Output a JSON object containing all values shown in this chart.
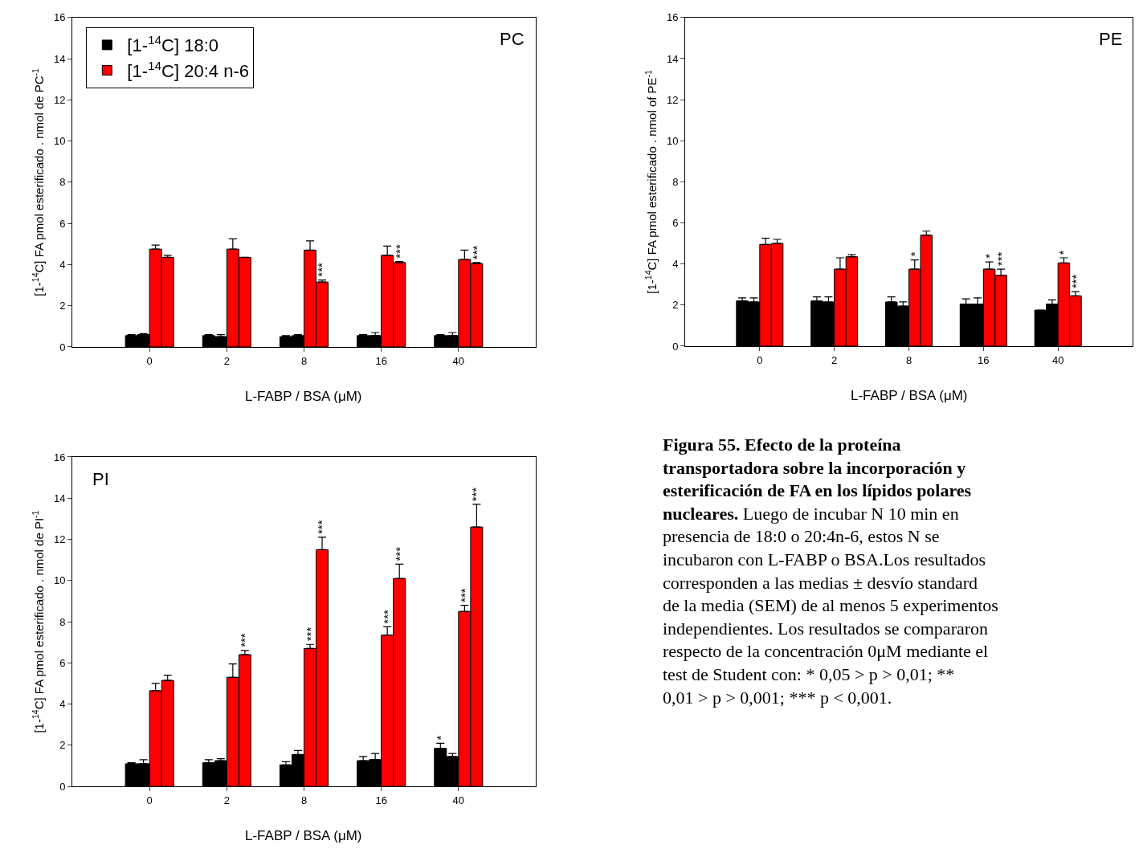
{
  "chart_data": [
    {
      "type": "bar",
      "title": "PC",
      "ylabel": "[1-$^{14}$C] FA pmol esterificado . nmol de PC$^{-1}$",
      "xlabel": "L-FABP / BSA (μM)",
      "categories": [
        "0",
        "2",
        "8",
        "16",
        "40"
      ],
      "ylim": [
        0,
        16
      ],
      "yticks": [
        0,
        2,
        4,
        6,
        8,
        10,
        12,
        14,
        16
      ],
      "legend": "top left",
      "series": [
        {
          "name": "[1-$^{14}$C] 18:0",
          "color": "#000000",
          "values": [
            0.55,
            0.55,
            0.5,
            0.55,
            0.55
          ],
          "errors": [
            [
              0.55,
              0.6
            ],
            [
              0.55,
              0.6
            ],
            [
              0.5,
              0.55
            ],
            [
              0.55,
              0.6
            ],
            [
              0.55,
              0.6
            ]
          ]
        },
        {
          "color": "#000000",
          "values": [
            0.6,
            0.5,
            0.55,
            0.55,
            0.55
          ],
          "errors": [
            [
              0.6,
              0.65
            ],
            [
              0.5,
              0.6
            ],
            [
              0.55,
              0.6
            ],
            [
              0.55,
              0.7
            ],
            [
              0.55,
              0.7
            ]
          ]
        },
        {
          "name": "[1-$^{14}$C] 20:4 n-6",
          "color": "#ff0000",
          "values": [
            4.75,
            4.75,
            4.7,
            4.45,
            4.25
          ],
          "errors": [
            [
              4.75,
              4.95
            ],
            [
              4.75,
              5.25
            ],
            [
              4.7,
              5.15
            ],
            [
              4.45,
              4.9
            ],
            [
              4.25,
              4.7
            ]
          ]
        },
        {
          "color": "#ff0000",
          "values": [
            4.35,
            4.35,
            3.15,
            4.1,
            4.05
          ],
          "errors": [
            [
              4.35,
              4.45
            ],
            [
              4.35,
              4.35
            ],
            [
              3.15,
              3.25
            ],
            [
              4.1,
              4.15
            ],
            [
              4.05,
              4.1
            ]
          ],
          "value_labels": [
            null,
            null,
            "***",
            "***",
            "***"
          ]
        }
      ]
    },
    {
      "type": "bar",
      "title": "PE",
      "ylabel": "[1-$^{14}$C] FA pmol esterificado . nmol of PE$^{-1}$",
      "xlabel": "L-FABP / BSA (μM)",
      "categories": [
        "0",
        "2",
        "8",
        "16",
        "40"
      ],
      "ylim": [
        0,
        16
      ],
      "yticks": [
        0,
        2,
        4,
        6,
        8,
        10,
        12,
        14,
        16
      ],
      "series": [
        {
          "color": "#000000",
          "values": [
            2.2,
            2.2,
            2.15,
            2.05,
            1.75
          ],
          "errors": [
            [
              2.2,
              2.35
            ],
            [
              2.2,
              2.4
            ],
            [
              2.15,
              2.4
            ],
            [
              2.05,
              2.3
            ],
            [
              1.75,
              1.75
            ]
          ]
        },
        {
          "color": "#000000",
          "values": [
            2.15,
            2.15,
            1.95,
            2.05,
            2.05
          ],
          "errors": [
            [
              2.15,
              2.35
            ],
            [
              2.15,
              2.4
            ],
            [
              1.95,
              2.15
            ],
            [
              2.05,
              2.35
            ],
            [
              2.05,
              2.25
            ]
          ]
        },
        {
          "color": "#ff0000",
          "values": [
            4.95,
            3.75,
            3.75,
            3.75,
            4.05
          ],
          "errors": [
            [
              4.95,
              5.25
            ],
            [
              3.75,
              4.3
            ],
            [
              3.75,
              4.2
            ],
            [
              3.75,
              4.1
            ],
            [
              4.05,
              4.3
            ]
          ],
          "value_labels": [
            null,
            null,
            "*",
            "*",
            "*"
          ]
        },
        {
          "color": "#ff0000",
          "values": [
            5.0,
            4.35,
            5.4,
            3.45,
            2.45
          ],
          "errors": [
            [
              5.0,
              5.2
            ],
            [
              4.35,
              4.45
            ],
            [
              5.4,
              5.6
            ],
            [
              3.45,
              3.75
            ],
            [
              2.45,
              2.65
            ]
          ],
          "value_labels": [
            null,
            null,
            null,
            "***",
            "***"
          ]
        }
      ]
    },
    {
      "type": "bar",
      "title": "PI",
      "ylabel": "[1-$^{14}$C] FA pmol esterificado . nmol de PI$^{-1}$",
      "xlabel": "L-FABP / BSA (μM)",
      "categories": [
        "0",
        "2",
        "8",
        "16",
        "40"
      ],
      "ylim": [
        0,
        16
      ],
      "yticks": [
        0,
        2,
        4,
        6,
        8,
        10,
        12,
        14,
        16
      ],
      "annotations": [
        "Figura 55. Efecto de la proteína transportadora sobre la incorporación y esterificación de FA en los lípidos polares nucleares.",
        "Luego de incubar N 10 min en presencia de 18:0 o 20:4n-6, estos N se incubaron con L-FABP o BSA.Los resultados corresponden a las medias ± desvío standard de la media (SEM) de al menos 5 experimentos independientes. Los resultados se compararon respecto de la concentración 0μM mediante el test de Student con: * 0,05 > p > 0,01; ** 0,01 > p > 0,001; *** p < 0,001."
      ],
      "series": [
        {
          "color": "#000000",
          "values": [
            1.1,
            1.15,
            1.05,
            1.25,
            1.85
          ],
          "errors": [
            [
              1.1,
              1.15
            ],
            [
              1.15,
              1.3
            ],
            [
              1.05,
              1.2
            ],
            [
              1.25,
              1.45
            ],
            [
              1.85,
              2.1
            ]
          ],
          "value_labels": [
            null,
            null,
            null,
            null,
            "*"
          ]
        },
        {
          "color": "#000000",
          "values": [
            1.1,
            1.25,
            1.55,
            1.3,
            1.45
          ],
          "errors": [
            [
              1.1,
              1.3
            ],
            [
              1.25,
              1.35
            ],
            [
              1.55,
              1.75
            ],
            [
              1.3,
              1.6
            ],
            [
              1.45,
              1.6
            ]
          ]
        },
        {
          "color": "#ff0000",
          "values": [
            4.65,
            5.3,
            6.7,
            7.35,
            8.5
          ],
          "errors": [
            [
              4.65,
              5.0
            ],
            [
              5.3,
              5.95
            ],
            [
              6.7,
              6.9
            ],
            [
              7.35,
              7.75
            ],
            [
              8.5,
              8.8
            ]
          ],
          "value_labels": [
            null,
            null,
            "***",
            "***",
            "***"
          ]
        },
        {
          "color": "#ff0000",
          "values": [
            5.15,
            6.4,
            11.5,
            10.1,
            12.6
          ],
          "errors": [
            [
              5.15,
              5.4
            ],
            [
              6.4,
              6.6
            ],
            [
              11.5,
              12.1
            ],
            [
              10.1,
              10.8
            ],
            [
              12.6,
              13.7
            ]
          ],
          "value_labels": [
            null,
            "***",
            "***",
            "***",
            "***"
          ]
        }
      ]
    }
  ]
}
